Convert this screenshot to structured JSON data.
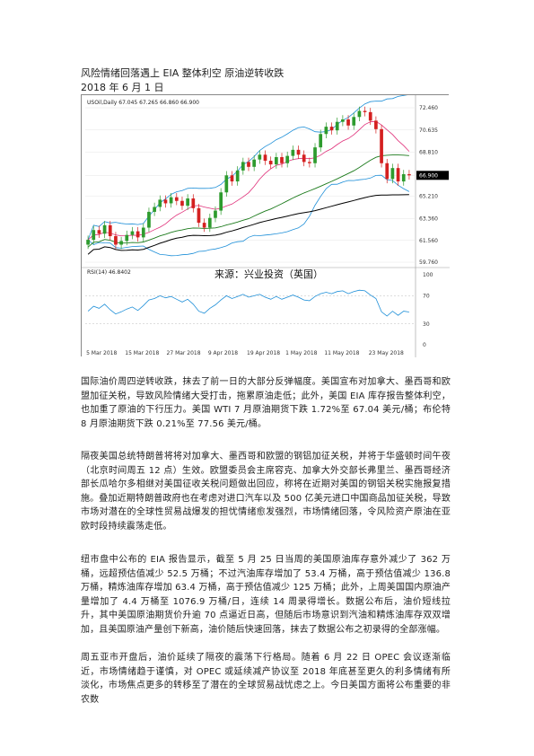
{
  "doc": {
    "title": "风险情绪回落遇上 EIA 整体利空 原油逆转收跌",
    "date": "2018 年 6 月 1 日"
  },
  "chart": {
    "symbol_line": "USOil,Daily  67.045 67.265 66.860 66.900",
    "price_ticks": [
      "72.460",
      "70.635",
      "68.810",
      "66.900",
      "65.210",
      "63.360",
      "61.560",
      "59.760"
    ],
    "rsi_label": "RSI(14) 46.8402",
    "rsi_ticks": [
      "100",
      "70",
      "30",
      "0"
    ],
    "x_ticks": [
      "5 Mar 2018",
      "15 Mar 2018",
      "27 Mar 2018",
      "9 Apr 2018",
      "19 Apr 2018",
      "1 May 2018",
      "11 May 2018",
      "23 May 2018"
    ],
    "source_label": "来源：兴业投资（英国）",
    "colors": {
      "up": "#2e9b2e",
      "down": "#d42020",
      "bollinger": "#1e8fd8",
      "ma_green": "#1b7a1b",
      "ma_black": "#000000",
      "ma_pink": "#e0307a",
      "rsi": "#1e8fd8",
      "price_box": "#000000"
    }
  },
  "chart_data": {
    "type": "candlestick",
    "title": "USOil,Daily",
    "ohlc_last": {
      "open": 67.045,
      "high": 67.265,
      "low": 66.86,
      "close": 66.9
    },
    "x_categories": [
      "5 Mar 2018",
      "15 Mar 2018",
      "27 Mar 2018",
      "9 Apr 2018",
      "19 Apr 2018",
      "1 May 2018",
      "11 May 2018",
      "23 May 2018"
    ],
    "closes": [
      61.6,
      62.4,
      62.1,
      62.8,
      61.9,
      61.2,
      61.5,
      62.0,
      62.3,
      61.8,
      62.6,
      63.9,
      64.3,
      64.9,
      64.6,
      65.1,
      64.8,
      64.4,
      65.0,
      64.2,
      63.0,
      62.6,
      63.4,
      64.0,
      65.5,
      66.9,
      66.4,
      67.3,
      68.0,
      67.6,
      68.2,
      68.6,
      68.1,
      67.8,
      68.4,
      67.9,
      68.5,
      69.0,
      68.6,
      68.0,
      67.9,
      69.2,
      70.3,
      70.9,
      70.6,
      71.3,
      71.5,
      71.0,
      71.7,
      72.2,
      72.1,
      71.4,
      70.7,
      67.9,
      66.6,
      67.5,
      66.4,
      67.0,
      66.9
    ],
    "price_ylim": [
      59.76,
      72.46
    ],
    "rsi": {
      "name": "RSI(14)",
      "last": 46.8402,
      "ylim": [
        0,
        100
      ],
      "levels": [
        70,
        30
      ],
      "values": [
        48,
        55,
        52,
        58,
        50,
        44,
        47,
        51,
        54,
        49,
        56,
        64,
        66,
        70,
        67,
        69,
        65,
        61,
        65,
        58,
        48,
        45,
        52,
        57,
        64,
        70,
        66,
        69,
        72,
        68,
        70,
        72,
        68,
        65,
        69,
        65,
        68,
        71,
        68,
        64,
        63,
        69,
        73,
        75,
        73,
        76,
        77,
        73,
        76,
        78,
        77,
        71,
        66,
        47,
        41,
        48,
        42,
        48,
        46.84
      ]
    }
  },
  "paragraphs": [
    "国际油价周四逆转收跌，抹去了前一日的大部分反弹幅度。美国宣布对加拿大、墨西哥和欧盟加征关税，导致风险情绪大受打击，拖累原油走低；此外，美国 EIA 库存报告整体利空，也加重了原油的下行压力。美国 WTI 7 月原油期货下跌 1.72%至 67.04 美元/桶；布伦特 8 月原油期货下跌 0.21%至 77.56 美元/桶。",
    "隔夜美国总统特朗普将将对加拿大、墨西哥和欧盟的钢铝加征关税，并将于华盛顿时间午夜（北京时间周五 12 点）生效。欧盟委员会主席容克、加拿大外交部长弗里兰、墨西哥经济部长瓜哈尔多相继对美国征收关税问题做出回应，称将在近期对美国的钢铝关税实施报复措施。叠加近期特朗普政府也在考虑对进口汽车以及 500 亿美元进口中国商品加征关税，导致市场对潜在的全球性贸易战爆发的担忧情绪愈发强烈，市场情绪回落，令风险资产原油在亚欧时段持续震荡走低。",
    "纽市盘中公布的 EIA 报告显示，截至 5 月 25 日当周的美国原油库存意外减少了 362 万桶，远超预估值减少 52.5 万桶；不过汽油库存增加了 53.4 万桶，高于预估值减少 136.8 万桶，精炼油库存增加 63.4 万桶，高于预估值减少 125 万桶；此外，上周美国国内原油产量增加了 4.4 万桶至 1076.9 万桶/日，连续 14 周录得增长。数据公布后，油价短线拉升，其中美国原油期货价升逾 70 点逼近日高，但随后市场意识到汽油和精炼油库存双双增加，且美国原油产量创下新高，油价随后快速回落，抹去了数据公布之初录得的全部涨幅。",
    "周五亚市开盘后，油价延续了隔夜的震荡下行格局。随着 6 月 22 日 OPEC 会议逐渐临近，市场情绪趋于谨慎，对 OPEC 或延续减产协议至 2018 年底甚至更久的利多情绪有所淡化，市场焦点更多的转移至了潜在的全球贸易战忧虑之上。今日美国方面将公布重要的非农数"
  ]
}
